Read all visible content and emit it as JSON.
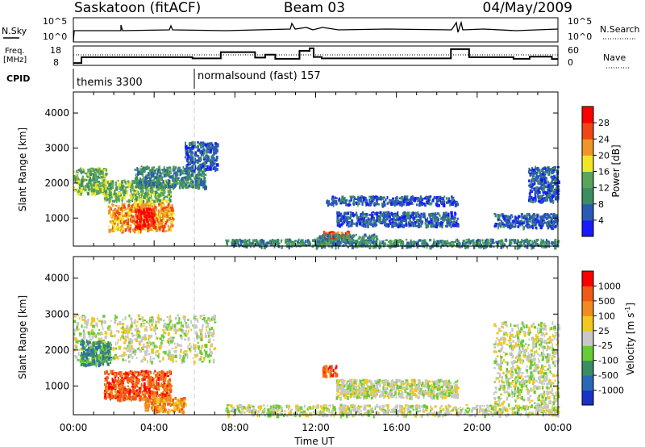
{
  "header": {
    "station": "Saskatoon (fitACF)",
    "beam": "Beam 03",
    "date": "04/May/2009"
  },
  "nsky": {
    "label": "N.Sky",
    "right_label": "N.Search",
    "ticks": [
      "10^5",
      "10^0"
    ],
    "right_ticks": [
      "10^5",
      "10^0"
    ]
  },
  "freq": {
    "label_line1": "Freq.",
    "label_line2": "[MHz]",
    "ticks": [
      "18",
      "8"
    ],
    "right_ticks": [
      "60",
      "0"
    ],
    "right_label": "Nave",
    "steps": [
      [
        0.0,
        9.2
      ],
      [
        0.4,
        12.2
      ],
      [
        5.9,
        11.6
      ],
      [
        7.3,
        14.8
      ],
      [
        9.0,
        12.0
      ],
      [
        9.5,
        13.5
      ],
      [
        10.0,
        11.4
      ],
      [
        11.2,
        15.5
      ],
      [
        11.7,
        16.8
      ],
      [
        11.9,
        12.3
      ],
      [
        12.3,
        11.6
      ],
      [
        18.7,
        16.4
      ],
      [
        19.6,
        12.2
      ],
      [
        21.8,
        11.4
      ],
      [
        22.6,
        12.5
      ],
      [
        23.7,
        11.3
      ],
      [
        24.0,
        11.3
      ]
    ]
  },
  "cpid": {
    "label": "CPID",
    "segments": [
      {
        "text": "themis 3300",
        "start_hour": 0
      },
      {
        "text": "normalsound (fast) 157",
        "start_hour": 6.0
      }
    ]
  },
  "chart_data": [
    {
      "type": "heatmap",
      "title": "Power",
      "ylabel": "Slant Range [km]",
      "xlim": [
        0,
        24
      ],
      "ylim": [
        200,
        4600
      ],
      "y_ticks": [
        "1000",
        "2000",
        "3000",
        "4000"
      ],
      "colorbar": {
        "label": "Power [dB]",
        "ticks": [
          "4",
          "8",
          "12",
          "16",
          "20",
          "24",
          "28"
        ],
        "colors": [
          "#1a1aff",
          "#2a5ab4",
          "#3c8c64",
          "#5aa55a",
          "#f0e628",
          "#f09628",
          "#f04616",
          "#ff0000"
        ]
      },
      "regions": [
        {
          "t0": 0.0,
          "t1": 1.6,
          "r0": 1700,
          "r1": 2450,
          "level": 3
        },
        {
          "t0": 1.5,
          "t1": 4.8,
          "r0": 1500,
          "r1": 2100,
          "level": 3
        },
        {
          "t0": 3.0,
          "t1": 6.5,
          "r0": 1900,
          "r1": 2500,
          "level": 2
        },
        {
          "t0": 1.7,
          "t1": 4.9,
          "r0": 650,
          "r1": 1450,
          "level": 5
        },
        {
          "t0": 3.0,
          "t1": 4.0,
          "r0": 750,
          "r1": 1300,
          "level": 7
        },
        {
          "t0": 5.5,
          "t1": 7.1,
          "r0": 2400,
          "r1": 3200,
          "level": 1
        },
        {
          "t0": 12.3,
          "t1": 13.6,
          "r0": 380,
          "r1": 650,
          "level": 6
        },
        {
          "t0": 12.0,
          "t1": 15.0,
          "r0": 320,
          "r1": 560,
          "level": 2
        },
        {
          "t0": 12.5,
          "t1": 19.0,
          "r0": 1400,
          "r1": 1650,
          "level": 1
        },
        {
          "t0": 13.0,
          "t1": 19.0,
          "r0": 800,
          "r1": 1200,
          "level": 1
        },
        {
          "t0": 20.8,
          "t1": 24.0,
          "r0": 750,
          "r1": 1150,
          "level": 1
        },
        {
          "t0": 22.5,
          "t1": 24.0,
          "r0": 1500,
          "r1": 2500,
          "level": 1
        },
        {
          "t0": 7.5,
          "t1": 24.0,
          "r0": 200,
          "r1": 420,
          "level": 2
        }
      ]
    },
    {
      "type": "heatmap",
      "title": "Velocity",
      "ylabel": "Slant Range [km]",
      "xlim": [
        0,
        24
      ],
      "ylim": [
        200,
        4600
      ],
      "y_ticks": [
        "1000",
        "2000",
        "3000",
        "4000"
      ],
      "x_ticks": [
        "00:00",
        "04:00",
        "08:00",
        "12:00",
        "16:00",
        "20:00",
        "00:00"
      ],
      "xlabel": "Time UT",
      "colorbar": {
        "label": "Velocity [m s^-1]",
        "ticks": [
          "1000",
          "500",
          "100",
          "25",
          "-25",
          "-100",
          "-500",
          "-1000"
        ],
        "colors": [
          "#1a32c8",
          "#2a6ab4",
          "#3c8c64",
          "#66cc33",
          "#c8c8c8",
          "#f0c81e",
          "#f08c1e",
          "#f05a14",
          "#ff0000"
        ]
      },
      "regions": [
        {
          "t0": 0.0,
          "t1": 7.0,
          "r0": 1700,
          "r1": 3000,
          "level": 4
        },
        {
          "t0": 1.5,
          "t1": 4.8,
          "r0": 650,
          "r1": 1450,
          "level": 7
        },
        {
          "t0": 3.5,
          "t1": 5.5,
          "r0": 300,
          "r1": 700,
          "level": 6
        },
        {
          "t0": 0.3,
          "t1": 1.8,
          "r0": 1600,
          "r1": 2300,
          "level": 2
        },
        {
          "t0": 12.3,
          "t1": 13.0,
          "r0": 1300,
          "r1": 1600,
          "level": 7
        },
        {
          "t0": 13.0,
          "t1": 19.0,
          "r0": 700,
          "r1": 1200,
          "level": 4
        },
        {
          "t0": 20.8,
          "t1": 24.0,
          "r0": 500,
          "r1": 2800,
          "level": 4
        },
        {
          "t0": 7.5,
          "t1": 24.0,
          "r0": 200,
          "r1": 500,
          "level": 4
        }
      ]
    }
  ]
}
